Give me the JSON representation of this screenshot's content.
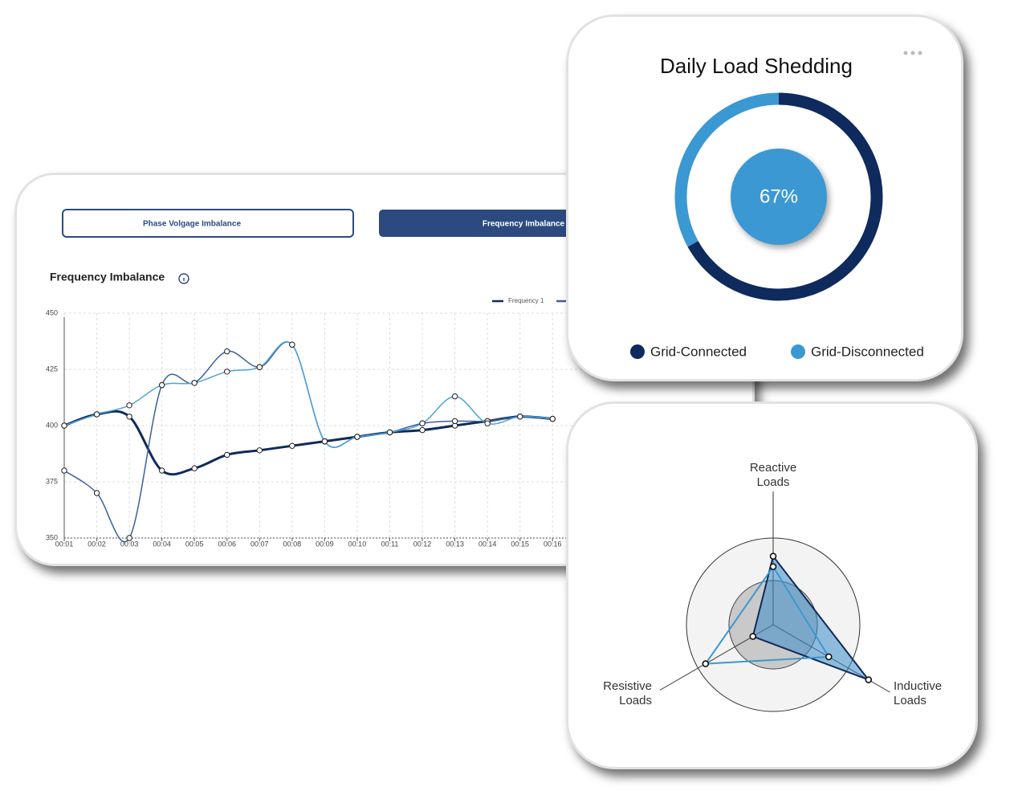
{
  "tabs": [
    "Phase Volgage Imbalance",
    "Frequency Imbalance"
  ],
  "chart_data": [
    {
      "type": "line",
      "title": "Frequency Imbalance",
      "categories": [
        "00:01",
        "00:02",
        "00:03",
        "00:04",
        "00:05",
        "00:06",
        "00:07",
        "00:08",
        "00:09",
        "00:10",
        "00:11",
        "00:12",
        "00:13",
        "00:14",
        "00:15",
        "00:16"
      ],
      "series": [
        {
          "name": "Frequency 1",
          "color": "#0f2a5c",
          "values": [
            400,
            405,
            404,
            380,
            381,
            387,
            389,
            391,
            393,
            395,
            397,
            398,
            400,
            402,
            404,
            403
          ]
        },
        {
          "color": "#3b5f9a",
          "values": [
            380,
            370,
            350,
            418,
            419,
            433,
            426,
            436,
            393,
            395,
            397,
            401,
            402,
            402,
            404,
            403
          ]
        },
        {
          "color": "#4aa3d8",
          "values": [
            400,
            405,
            409,
            418,
            419,
            424,
            426,
            436,
            393,
            395,
            397,
            401,
            413,
            401,
            404,
            403
          ]
        }
      ],
      "ylim": [
        350,
        450
      ],
      "yticks": [
        350,
        375,
        400,
        425,
        450
      ],
      "grid": true
    },
    {
      "type": "pie",
      "title": "Daily Load Shedding",
      "categories": [
        "Grid-Connected",
        "Grid-Disconnected"
      ],
      "values": [
        67,
        33
      ],
      "colors": [
        "#0f2a5c",
        "#3a98d3"
      ],
      "center_label": "67%"
    },
    {
      "type": "radar",
      "categories": [
        "Reactive Loads",
        "Inductive Loads",
        "Resistive Loads"
      ],
      "series": [
        {
          "color": "#0f2a5c",
          "values": [
            79,
            127,
            27
          ]
        },
        {
          "color": "#3a98d3",
          "values": [
            67,
            74,
            90
          ]
        }
      ],
      "rlim": [
        0,
        100
      ]
    }
  ]
}
